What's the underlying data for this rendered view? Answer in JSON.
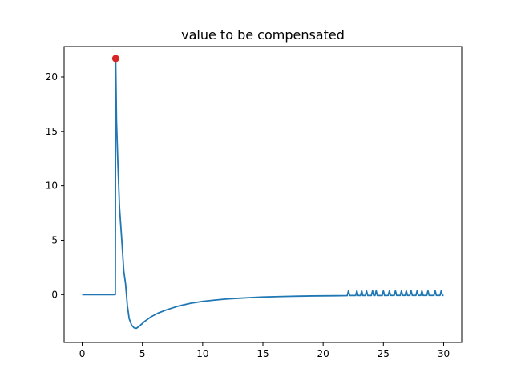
{
  "chart_data": {
    "type": "line",
    "title": "value to be compensated",
    "xlabel": "",
    "ylabel": "",
    "xlim": [
      -1.5,
      31.5
    ],
    "ylim": [
      -4.4,
      22.8
    ],
    "x_ticks": [
      0,
      5,
      10,
      15,
      20,
      25,
      30
    ],
    "y_ticks": [
      0,
      5,
      10,
      15,
      20
    ],
    "grid": false,
    "line_color": "#1f77b4",
    "marker_color": "#d62728",
    "series": [
      {
        "points": [
          [
            0,
            0
          ],
          [
            2.75,
            0
          ],
          [
            2.78,
            21.7
          ],
          [
            2.85,
            16
          ],
          [
            2.95,
            12.5
          ],
          [
            3.1,
            8
          ],
          [
            3.3,
            4.8
          ],
          [
            3.45,
            2.2
          ],
          [
            3.6,
            1
          ],
          [
            3.75,
            -1
          ],
          [
            3.9,
            -2.2
          ],
          [
            4.1,
            -2.8
          ],
          [
            4.3,
            -3.05
          ],
          [
            4.5,
            -3.1
          ],
          [
            4.8,
            -2.85
          ],
          [
            5.2,
            -2.45
          ],
          [
            5.7,
            -2.05
          ],
          [
            6.3,
            -1.7
          ],
          [
            7,
            -1.4
          ],
          [
            8,
            -1.05
          ],
          [
            9,
            -0.8
          ],
          [
            10,
            -0.62
          ],
          [
            11,
            -0.5
          ],
          [
            12,
            -0.4
          ],
          [
            13,
            -0.33
          ],
          [
            14,
            -0.27
          ],
          [
            15,
            -0.22
          ],
          [
            16,
            -0.19
          ],
          [
            17,
            -0.16
          ],
          [
            18,
            -0.14
          ],
          [
            19,
            -0.12
          ],
          [
            20,
            -0.11
          ],
          [
            21,
            -0.1
          ],
          [
            22,
            -0.09
          ],
          [
            22.1,
            0.35
          ],
          [
            22.2,
            -0.08
          ],
          [
            22.7,
            -0.08
          ],
          [
            22.8,
            0.35
          ],
          [
            22.9,
            -0.08
          ],
          [
            23.1,
            -0.08
          ],
          [
            23.2,
            0.35
          ],
          [
            23.3,
            -0.08
          ],
          [
            23.5,
            -0.08
          ],
          [
            23.6,
            0.35
          ],
          [
            23.7,
            -0.08
          ],
          [
            24,
            -0.08
          ],
          [
            24.1,
            0.35
          ],
          [
            24.2,
            -0.08
          ],
          [
            24.3,
            -0.08
          ],
          [
            24.4,
            0.35
          ],
          [
            24.5,
            -0.08
          ],
          [
            24.9,
            -0.08
          ],
          [
            25,
            0.35
          ],
          [
            25.1,
            -0.08
          ],
          [
            25.4,
            -0.07
          ],
          [
            25.5,
            0.35
          ],
          [
            25.6,
            -0.07
          ],
          [
            25.9,
            -0.07
          ],
          [
            26,
            0.35
          ],
          [
            26.1,
            -0.07
          ],
          [
            26.4,
            -0.07
          ],
          [
            26.5,
            0.35
          ],
          [
            26.6,
            -0.07
          ],
          [
            26.8,
            -0.07
          ],
          [
            26.9,
            0.35
          ],
          [
            27,
            -0.07
          ],
          [
            27.2,
            -0.07
          ],
          [
            27.3,
            0.35
          ],
          [
            27.4,
            -0.07
          ],
          [
            27.7,
            -0.07
          ],
          [
            27.8,
            0.35
          ],
          [
            27.9,
            -0.07
          ],
          [
            28.1,
            -0.07
          ],
          [
            28.2,
            0.35
          ],
          [
            28.3,
            -0.07
          ],
          [
            28.6,
            -0.07
          ],
          [
            28.7,
            0.35
          ],
          [
            28.8,
            -0.07
          ],
          [
            29.2,
            -0.07
          ],
          [
            29.3,
            0.35
          ],
          [
            29.4,
            -0.07
          ],
          [
            29.7,
            -0.07
          ],
          [
            29.8,
            0.35
          ],
          [
            29.9,
            -0.07
          ],
          [
            30,
            -0.07
          ]
        ]
      }
    ],
    "highlight_point": {
      "x": 2.78,
      "y": 21.7
    }
  }
}
